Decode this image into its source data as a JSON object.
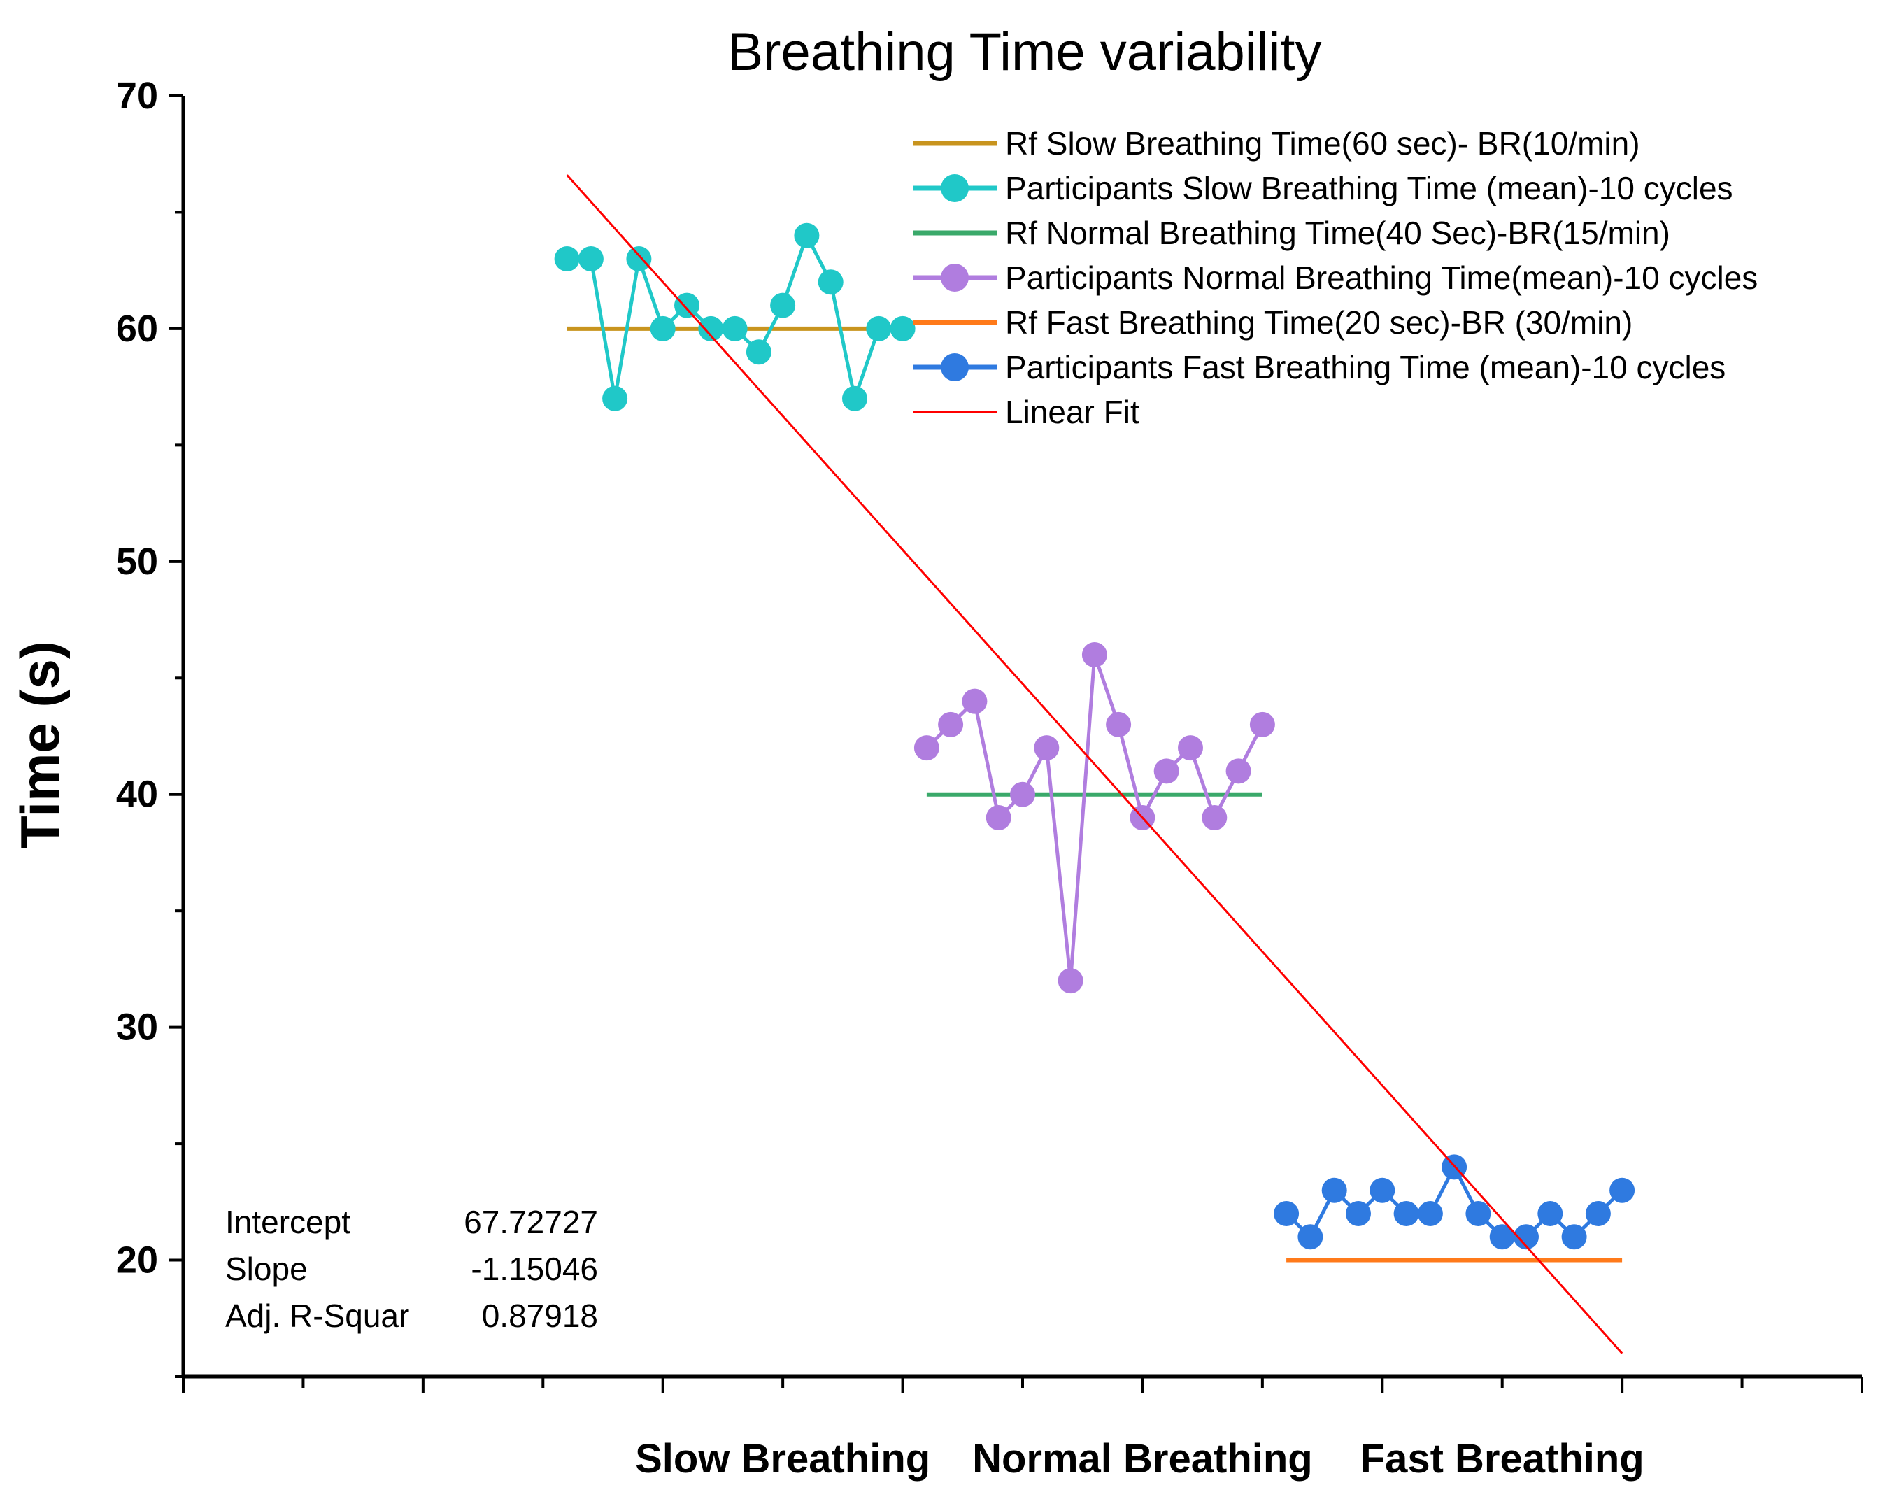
{
  "chart_data": {
    "type": "line",
    "title": "Breathing Time variability",
    "xlabel": "",
    "ylabel": "Time (s)",
    "ylim": [
      15,
      70
    ],
    "yticks": [
      20,
      30,
      40,
      50,
      60,
      70
    ],
    "categories": [
      "Slow Breathing",
      "Normal Breathing",
      "Fast Breathing"
    ],
    "series": [
      {
        "name": "Rf Slow Breathing Time(60 sec)- BR(10/min)",
        "kind": "reference",
        "color": "#c8941e",
        "x": [
          1.6,
          3.0
        ],
        "values": [
          60,
          60
        ]
      },
      {
        "name": "Participants Slow Breathing Time (mean)-10 cycles",
        "kind": "points",
        "color": "#20c8c8",
        "x": [
          1.6,
          1.7,
          1.8,
          1.9,
          2.0,
          2.1,
          2.2,
          2.3,
          2.4,
          2.5,
          2.6,
          2.7,
          2.8,
          2.9,
          3.0
        ],
        "values": [
          63,
          63,
          57,
          63,
          60,
          61,
          60,
          60,
          59,
          61,
          64,
          62,
          57,
          60,
          60
        ]
      },
      {
        "name": "Rf Normal Breathing Time(40 Sec)-BR(15/min)",
        "kind": "reference",
        "color": "#3aa96a",
        "x": [
          3.1,
          4.5
        ],
        "values": [
          40,
          40
        ]
      },
      {
        "name": "Participants Normal Breathing Time(mean)-10 cycles",
        "kind": "points",
        "color": "#b07ddf",
        "x": [
          3.1,
          3.2,
          3.3,
          3.4,
          3.5,
          3.6,
          3.7,
          3.8,
          3.9,
          4.0,
          4.1,
          4.2,
          4.3,
          4.4,
          4.5
        ],
        "values": [
          42,
          43,
          44,
          39,
          40,
          42,
          32,
          46,
          43,
          39,
          41,
          42,
          39,
          41,
          43
        ]
      },
      {
        "name": "Rf Fast Breathing Time(20 sec)-BR (30/min)",
        "kind": "reference",
        "color": "#ff7a1a",
        "x": [
          4.6,
          6.0
        ],
        "values": [
          20,
          20
        ]
      },
      {
        "name": "Participants Fast Breathing Time (mean)-10 cycles",
        "kind": "points",
        "color": "#2f7ae0",
        "x": [
          4.6,
          4.7,
          4.8,
          4.9,
          5.0,
          5.1,
          5.2,
          5.3,
          5.4,
          5.5,
          5.6,
          5.7,
          5.8,
          5.9,
          6.0
        ],
        "values": [
          22,
          21,
          23,
          22,
          23,
          22,
          22,
          24,
          22,
          21,
          21,
          22,
          21,
          22,
          23
        ]
      },
      {
        "name": "Linear Fit",
        "kind": "fit",
        "color": "#ff0000",
        "x": [
          1.6,
          6.0
        ],
        "values": [
          66.6,
          16.0
        ]
      }
    ],
    "fit_stats": [
      {
        "label": "Intercept",
        "value": "67.72727"
      },
      {
        "label": "Slope",
        "value": "-1.15046"
      },
      {
        "label": "Adj. R-Squar",
        "value": "0.87918"
      }
    ],
    "legend_position": "top-right"
  }
}
